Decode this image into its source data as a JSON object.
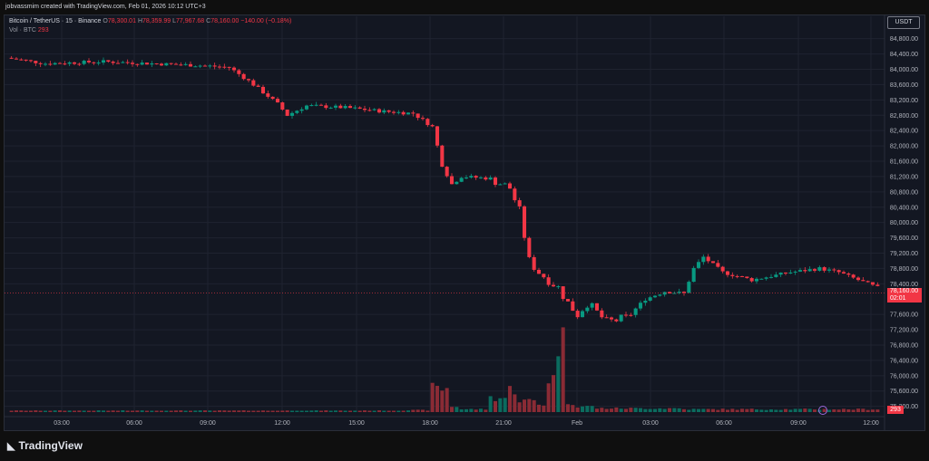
{
  "caption": "jobvassmim created with TradingView.com, Feb 01, 2026 10:12 UTC+3",
  "legend": {
    "symbol": "Bitcoin / TetherUS · 15 · Binance",
    "o_label": "O",
    "o_value": "78,300.01",
    "h_label": "H",
    "h_value": "78,359.99",
    "l_label": "L",
    "l_value": "77,967.68",
    "c_label": "C",
    "c_value": "78,160.00",
    "change": "−140.00 (−0.18%)",
    "vol_label": "Vol · BTC",
    "vol_value": "293"
  },
  "currency": "USDT",
  "last_price": "78,160.00",
  "countdown": "02:01",
  "volume_tag": "293",
  "brand": "TradingView",
  "colors": {
    "up": "#089981",
    "down": "#f23645",
    "vol_up": "#0b6b5e",
    "vol_down": "#8a2b35",
    "grid": "#1f2330",
    "bg": "#131722"
  },
  "chart_data": {
    "type": "candlestick",
    "price_axis_labels": [
      "84,800.00",
      "84,400.00",
      "84,000.00",
      "83,600.00",
      "83,200.00",
      "82,800.00",
      "82,400.00",
      "82,000.00",
      "81,600.00",
      "81,200.00",
      "80,800.00",
      "80,400.00",
      "80,000.00",
      "79,600.00",
      "79,200.00",
      "78,800.00",
      "78,400.00",
      "77,600.00",
      "77,200.00",
      "76,800.00",
      "76,400.00",
      "76,000.00",
      "75,600.00",
      "75,200.00"
    ],
    "price_ticks": [
      84800,
      84400,
      84000,
      83600,
      83200,
      82800,
      82400,
      82000,
      81600,
      81200,
      80800,
      80400,
      80000,
      79600,
      79200,
      78800,
      78400,
      77600,
      77200,
      76800,
      76400,
      76000,
      75600,
      75200
    ],
    "time_labels": [
      "03:00",
      "06:00",
      "09:00",
      "12:00",
      "15:00",
      "18:00",
      "21:00",
      "Feb",
      "03:00",
      "06:00",
      "09:00",
      "12:00"
    ],
    "ylim": [
      75050,
      85100
    ],
    "last": 78160,
    "path": [
      [
        0,
        84300
      ],
      [
        8,
        84150
      ],
      [
        20,
        84200
      ],
      [
        30,
        84150
      ],
      [
        40,
        84100
      ],
      [
        46,
        84050
      ],
      [
        50,
        83700
      ],
      [
        52,
        83500
      ],
      [
        56,
        83100
      ],
      [
        58,
        82800
      ],
      [
        62,
        83050
      ],
      [
        70,
        83000
      ],
      [
        78,
        82900
      ],
      [
        84,
        82850
      ],
      [
        88,
        82500
      ],
      [
        90,
        81500
      ],
      [
        92,
        81000
      ],
      [
        94,
        81200
      ],
      [
        100,
        81150
      ],
      [
        104,
        80900
      ],
      [
        106,
        80300
      ],
      [
        108,
        79000
      ],
      [
        110,
        78700
      ],
      [
        114,
        78300
      ],
      [
        116,
        77900
      ],
      [
        118,
        77600
      ],
      [
        120,
        77900
      ],
      [
        124,
        77400
      ],
      [
        128,
        77500
      ],
      [
        132,
        78000
      ],
      [
        136,
        78200
      ],
      [
        140,
        78150
      ],
      [
        142,
        78800
      ],
      [
        144,
        79100
      ],
      [
        148,
        78700
      ],
      [
        154,
        78500
      ],
      [
        158,
        78600
      ],
      [
        162,
        78700
      ],
      [
        168,
        78800
      ],
      [
        172,
        78700
      ],
      [
        176,
        78500
      ],
      [
        180,
        78300
      ]
    ],
    "volume_profile": [
      [
        0,
        3
      ],
      [
        82,
        4
      ],
      [
        88,
        50
      ],
      [
        92,
        12
      ],
      [
        94,
        6
      ],
      [
        100,
        30
      ],
      [
        104,
        48
      ],
      [
        106,
        24
      ],
      [
        110,
        16
      ],
      [
        112,
        70
      ],
      [
        114,
        150
      ],
      [
        116,
        20
      ],
      [
        118,
        12
      ],
      [
        122,
        8
      ],
      [
        140,
        6
      ],
      [
        180,
        6
      ]
    ]
  }
}
